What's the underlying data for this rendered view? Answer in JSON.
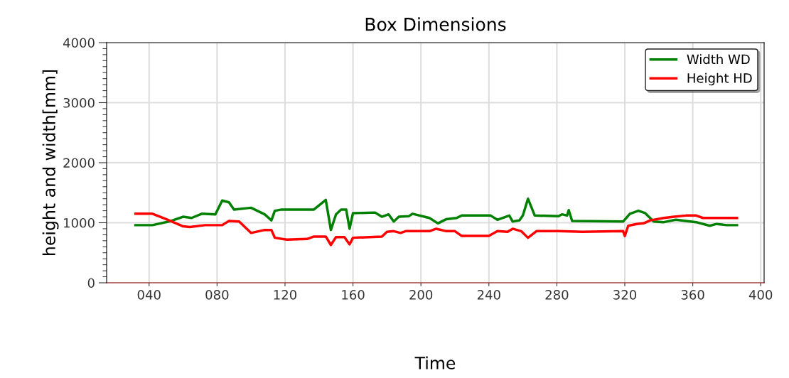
{
  "chart_data": {
    "type": "line",
    "title": "Box Dimensions",
    "xlabel": "Time",
    "ylabel": "height and width[mm]",
    "xlim": [
      15,
      402
    ],
    "ylim": [
      0,
      4000
    ],
    "xticks": [
      {
        "value": 40,
        "label": "040"
      },
      {
        "value": 80,
        "label": "080"
      },
      120,
      160,
      200,
      240,
      280,
      320,
      360,
      400
    ],
    "yticks": [
      0,
      1000,
      2000,
      3000,
      4000
    ],
    "grid": true,
    "legend": "top right",
    "marker": "none",
    "line_style": "solid",
    "series": [
      {
        "name": "Width WD",
        "color": "#008000",
        "x": [
          32,
          42,
          53,
          60,
          65,
          71,
          79,
          83,
          87,
          90,
          100,
          108,
          112,
          114,
          118,
          137,
          144,
          147,
          150,
          153,
          156,
          158,
          160,
          173,
          177,
          181,
          184,
          187,
          193,
          195,
          205,
          210,
          215,
          221,
          224,
          241,
          245,
          252,
          254,
          258,
          260,
          263,
          267,
          281,
          283,
          286,
          287,
          289,
          319,
          323,
          328,
          332,
          337,
          343,
          350,
          362,
          370,
          374,
          380,
          386
        ],
        "values": [
          960,
          960,
          1030,
          1100,
          1080,
          1150,
          1140,
          1370,
          1340,
          1220,
          1250,
          1140,
          1040,
          1200,
          1220,
          1220,
          1380,
          880,
          1140,
          1220,
          1220,
          900,
          1160,
          1170,
          1100,
          1140,
          1020,
          1100,
          1110,
          1150,
          1080,
          990,
          1060,
          1080,
          1120,
          1120,
          1050,
          1120,
          1020,
          1040,
          1120,
          1400,
          1120,
          1110,
          1140,
          1120,
          1210,
          1030,
          1020,
          1150,
          1200,
          1160,
          1020,
          1010,
          1050,
          1010,
          950,
          980,
          960,
          960
        ]
      },
      {
        "name": "Height HD",
        "color": "#ff0000",
        "x": [
          32,
          42,
          50,
          60,
          64,
          73,
          83,
          87,
          93,
          100,
          108,
          112,
          114,
          121,
          133,
          137,
          144,
          147,
          150,
          155,
          158,
          160,
          177,
          180,
          184,
          188,
          191,
          205,
          209,
          215,
          220,
          224,
          240,
          245,
          251,
          254,
          259,
          263,
          268,
          281,
          295,
          319,
          320,
          322,
          327,
          331,
          335,
          343,
          349,
          356,
          362,
          366,
          386
        ],
        "values": [
          1150,
          1150,
          1060,
          940,
          930,
          960,
          960,
          1030,
          1020,
          830,
          880,
          880,
          750,
          720,
          730,
          770,
          770,
          630,
          760,
          760,
          640,
          750,
          770,
          850,
          860,
          830,
          860,
          860,
          900,
          860,
          860,
          780,
          780,
          860,
          850,
          900,
          860,
          750,
          860,
          860,
          850,
          860,
          780,
          950,
          980,
          990,
          1040,
          1080,
          1100,
          1120,
          1120,
          1080,
          1080
        ]
      }
    ]
  }
}
